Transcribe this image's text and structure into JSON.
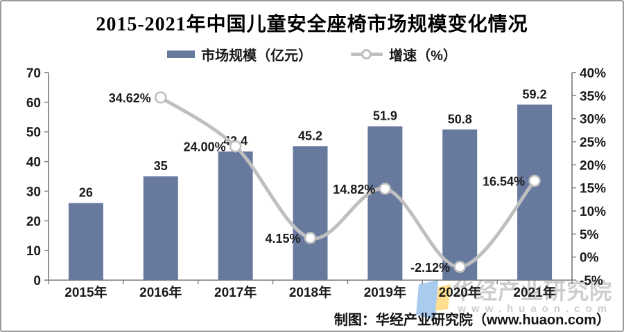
{
  "title": "2015-2021年中国儿童安全座椅市场规模变化情况",
  "legend": {
    "items": [
      {
        "label": "市场规模（亿元）",
        "type": "bar"
      },
      {
        "label": "增速（%）",
        "type": "line"
      }
    ]
  },
  "chart_data": {
    "type": "bar+line combo",
    "categories": [
      "2015年",
      "2016年",
      "2017年",
      "2018年",
      "2019年",
      "2020年",
      "2021年"
    ],
    "series": [
      {
        "name": "市场规模（亿元）",
        "type": "bar",
        "axis": "left",
        "values": [
          26,
          35,
          43.4,
          45.2,
          51.9,
          50.8,
          59.2
        ],
        "labels": [
          "26",
          "35",
          "43.4",
          "45.2",
          "51.9",
          "50.8",
          "59.2"
        ]
      },
      {
        "name": "增速（%）",
        "type": "line",
        "axis": "right",
        "values": [
          null,
          34.62,
          24.0,
          4.15,
          14.82,
          -2.12,
          16.54
        ],
        "labels": [
          null,
          "34.62%",
          "24.00%",
          "4.15%",
          "14.82%",
          "-2.12%",
          "16.54%"
        ]
      }
    ],
    "left_axis": {
      "min": 0,
      "max": 70,
      "step": 10,
      "ticks": [
        "0",
        "10",
        "20",
        "30",
        "40",
        "50",
        "60",
        "70"
      ]
    },
    "right_axis": {
      "min": -5,
      "max": 40,
      "step": 5,
      "ticks": [
        "-5%",
        "0%",
        "5%",
        "10%",
        "15%",
        "20%",
        "25%",
        "30%",
        "35%",
        "40%"
      ]
    },
    "grid": false,
    "legend_position": "top"
  },
  "colors": {
    "bar": "#68799e",
    "line": "#bfbfbf",
    "marker_fill": "#ffffff",
    "axis": "#7a7a7a",
    "text": "#1a1a1a",
    "watermark": "#cdcdcd",
    "logo_blue": "#a9cbee",
    "logo_yellow": "#ffdf8d"
  },
  "watermark": {
    "brand": "华经产业研究院",
    "url": "www.huaon.com"
  },
  "caption": "制图：华经产业研究院（www.huaon.com）"
}
